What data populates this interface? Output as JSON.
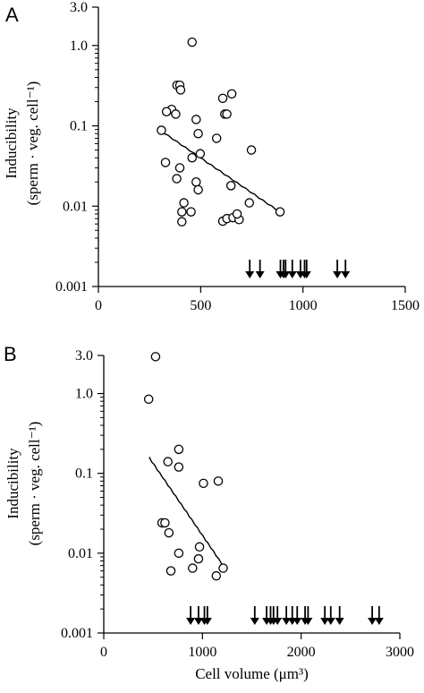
{
  "chart_data": [
    {
      "panel": "A",
      "type": "scatter",
      "xlabel": "",
      "ylabel": "Inducibility",
      "ylabel_units": "(sperm · veg. cell⁻¹)",
      "x_scale": "linear",
      "y_scale": "log",
      "xlim": [
        0,
        1500
      ],
      "ylim": [
        0.001,
        3.0
      ],
      "x_ticks": [
        "0",
        "500",
        "1000",
        "1500"
      ],
      "y_ticks": [
        {
          "value": 3.0,
          "label": "3.0"
        },
        {
          "value": 1.0,
          "label": "1.0"
        },
        {
          "value": 0.1,
          "label": "0.1"
        },
        {
          "value": 0.01,
          "label": "0.01"
        },
        {
          "value": 0.001,
          "label": "0.001"
        }
      ],
      "grid": false,
      "points": [
        {
          "x": 458,
          "y": 1.1
        },
        {
          "x": 384,
          "y": 0.32
        },
        {
          "x": 398,
          "y": 0.32
        },
        {
          "x": 402,
          "y": 0.28
        },
        {
          "x": 358,
          "y": 0.16
        },
        {
          "x": 333,
          "y": 0.15
        },
        {
          "x": 378,
          "y": 0.14
        },
        {
          "x": 478,
          "y": 0.12
        },
        {
          "x": 308,
          "y": 0.088
        },
        {
          "x": 488,
          "y": 0.08
        },
        {
          "x": 578,
          "y": 0.07
        },
        {
          "x": 608,
          "y": 0.22
        },
        {
          "x": 652,
          "y": 0.25
        },
        {
          "x": 618,
          "y": 0.14
        },
        {
          "x": 628,
          "y": 0.14
        },
        {
          "x": 748,
          "y": 0.05
        },
        {
          "x": 498,
          "y": 0.045
        },
        {
          "x": 458,
          "y": 0.04
        },
        {
          "x": 328,
          "y": 0.035
        },
        {
          "x": 398,
          "y": 0.03
        },
        {
          "x": 383,
          "y": 0.022
        },
        {
          "x": 478,
          "y": 0.02
        },
        {
          "x": 488,
          "y": 0.016
        },
        {
          "x": 648,
          "y": 0.018
        },
        {
          "x": 418,
          "y": 0.011
        },
        {
          "x": 408,
          "y": 0.0085
        },
        {
          "x": 453,
          "y": 0.0085
        },
        {
          "x": 608,
          "y": 0.0065
        },
        {
          "x": 628,
          "y": 0.007
        },
        {
          "x": 658,
          "y": 0.0072
        },
        {
          "x": 688,
          "y": 0.0068
        },
        {
          "x": 678,
          "y": 0.008
        },
        {
          "x": 408,
          "y": 0.0064
        },
        {
          "x": 738,
          "y": 0.011
        },
        {
          "x": 888,
          "y": 0.0085
        }
      ],
      "trend_line": {
        "x": [
          300,
          890
        ],
        "y": [
          0.09,
          0.0085
        ]
      },
      "arrows_x": [
        740,
        790,
        890,
        905,
        915,
        948,
        988,
        1008,
        1018,
        1168,
        1208
      ]
    },
    {
      "panel": "B",
      "type": "scatter",
      "xlabel": "Cell volume (μm³)",
      "ylabel": "Inducibility",
      "ylabel_units": "(sperm · veg. cell⁻¹)",
      "x_scale": "linear",
      "y_scale": "log",
      "xlim": [
        0,
        3000
      ],
      "ylim": [
        0.001,
        3.0
      ],
      "x_ticks": [
        "0",
        "1000",
        "2000",
        "3000"
      ],
      "y_ticks": [
        {
          "value": 3.0,
          "label": "3.0"
        },
        {
          "value": 1.0,
          "label": "1.0"
        },
        {
          "value": 0.1,
          "label": "0.1"
        },
        {
          "value": 0.01,
          "label": "0.01"
        },
        {
          "value": 0.001,
          "label": "0.001"
        }
      ],
      "grid": false,
      "points": [
        {
          "x": 525,
          "y": 2.9
        },
        {
          "x": 455,
          "y": 0.85
        },
        {
          "x": 760,
          "y": 0.2
        },
        {
          "x": 650,
          "y": 0.14
        },
        {
          "x": 760,
          "y": 0.12
        },
        {
          "x": 1010,
          "y": 0.075
        },
        {
          "x": 1160,
          "y": 0.08
        },
        {
          "x": 590,
          "y": 0.024
        },
        {
          "x": 620,
          "y": 0.024
        },
        {
          "x": 660,
          "y": 0.018
        },
        {
          "x": 970,
          "y": 0.012
        },
        {
          "x": 760,
          "y": 0.01
        },
        {
          "x": 960,
          "y": 0.0085
        },
        {
          "x": 900,
          "y": 0.0065
        },
        {
          "x": 680,
          "y": 0.006
        },
        {
          "x": 1140,
          "y": 0.0052
        },
        {
          "x": 1210,
          "y": 0.0065
        }
      ],
      "trend_line": {
        "x": [
          460,
          1220
        ],
        "y": [
          0.16,
          0.0068
        ]
      },
      "arrows_x": [
        880,
        960,
        1020,
        1050,
        1530,
        1650,
        1690,
        1720,
        1760,
        1850,
        1910,
        1960,
        2040,
        2070,
        2240,
        2300,
        2390,
        2720,
        2790
      ]
    }
  ]
}
